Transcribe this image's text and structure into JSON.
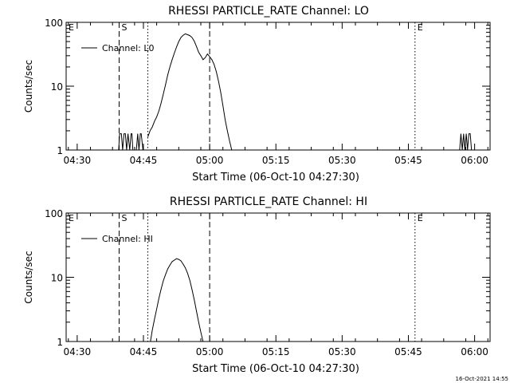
{
  "chart_data": [
    {
      "type": "line",
      "title": "RHESSI PARTICLE_RATE Channel: LO",
      "xlabel": "Start Time (06-Oct-10 04:27:30)",
      "ylabel": "Counts/sec",
      "yscale": "log",
      "ylim": [
        1,
        100
      ],
      "xlim_minutes": [
        -2.5,
        93.5
      ],
      "xticks": [
        {
          "t": 0,
          "label": "04:30"
        },
        {
          "t": 15,
          "label": "04:45"
        },
        {
          "t": 30,
          "label": "05:00"
        },
        {
          "t": 45,
          "label": "05:15"
        },
        {
          "t": 60,
          "label": "05:30"
        },
        {
          "t": 75,
          "label": "05:45"
        },
        {
          "t": 90,
          "label": "06:00"
        }
      ],
      "yticks": [
        {
          "v": 1,
          "label": "1"
        },
        {
          "v": 10,
          "label": "10"
        },
        {
          "v": 100,
          "label": "100"
        }
      ],
      "legend": {
        "label": "Channel: L0",
        "placement": "top-left"
      },
      "markers": [
        {
          "t": -2.5,
          "style": "dotted",
          "label": "E"
        },
        {
          "t": 9.5,
          "style": "dashed",
          "label": "S"
        },
        {
          "t": 16.0,
          "style": "dotted",
          "label": ""
        },
        {
          "t": 30.0,
          "style": "dashed",
          "label": ""
        },
        {
          "t": 76.5,
          "style": "dotted",
          "label": "E"
        },
        {
          "t": 93.5,
          "style": "dotted",
          "label": ""
        }
      ],
      "series": [
        {
          "name": "Channel: L0",
          "points": [
            [
              9.4,
              1
            ],
            [
              9.6,
              1.8
            ],
            [
              10.0,
              1.8
            ],
            [
              10.3,
              1
            ],
            [
              10.6,
              1.8
            ],
            [
              10.9,
              1.8
            ],
            [
              11.2,
              1
            ],
            [
              11.5,
              1.8
            ],
            [
              11.9,
              1
            ],
            [
              12.2,
              1.8
            ],
            [
              12.4,
              1.8
            ],
            [
              12.6,
              1
            ],
            [
              13.4,
              1
            ],
            [
              13.7,
              1.8
            ],
            [
              14.0,
              1
            ],
            [
              14.3,
              1.8
            ],
            [
              14.5,
              1.8
            ],
            [
              14.9,
              1
            ],
            [
              16.0,
              1.6
            ],
            [
              16.5,
              2.0
            ],
            [
              17.0,
              2.3
            ],
            [
              17.5,
              2.8
            ],
            [
              18.0,
              3.3
            ],
            [
              18.5,
              4.1
            ],
            [
              19.0,
              5.4
            ],
            [
              19.5,
              7.5
            ],
            [
              20.0,
              10.5
            ],
            [
              20.5,
              15
            ],
            [
              21.0,
              20
            ],
            [
              21.5,
              26
            ],
            [
              22.0,
              33
            ],
            [
              22.5,
              41
            ],
            [
              23.0,
              50
            ],
            [
              23.5,
              58
            ],
            [
              24.0,
              63
            ],
            [
              24.5,
              66
            ],
            [
              25.0,
              64
            ],
            [
              25.5,
              62
            ],
            [
              26.0,
              58
            ],
            [
              26.5,
              51
            ],
            [
              27.0,
              42
            ],
            [
              27.5,
              34
            ],
            [
              28.0,
              30
            ],
            [
              28.5,
              26
            ],
            [
              29.0,
              28
            ],
            [
              29.5,
              32
            ],
            [
              30.0,
              29
            ],
            [
              30.5,
              26
            ],
            [
              31.0,
              22
            ],
            [
              31.5,
              17
            ],
            [
              32.0,
              12
            ],
            [
              32.5,
              8
            ],
            [
              33.0,
              5
            ],
            [
              33.5,
              3
            ],
            [
              34.0,
              2
            ],
            [
              34.5,
              1.4
            ],
            [
              35.0,
              1
            ],
            [
              86.6,
              1
            ],
            [
              86.9,
              1.8
            ],
            [
              87.2,
              1
            ],
            [
              87.5,
              1.8
            ],
            [
              87.8,
              1
            ],
            [
              88.1,
              1.8
            ],
            [
              88.4,
              1
            ],
            [
              88.7,
              1.8
            ],
            [
              89.0,
              1.8
            ],
            [
              89.3,
              1
            ]
          ]
        }
      ]
    },
    {
      "type": "line",
      "title": "RHESSI PARTICLE_RATE Channel: HI",
      "xlabel": "Start Time (06-Oct-10 04:27:30)",
      "ylabel": "Counts/sec",
      "yscale": "log",
      "ylim": [
        1,
        100
      ],
      "xlim_minutes": [
        -2.5,
        93.5
      ],
      "xticks": [
        {
          "t": 0,
          "label": "04:30"
        },
        {
          "t": 15,
          "label": "04:45"
        },
        {
          "t": 30,
          "label": "05:00"
        },
        {
          "t": 45,
          "label": "05:15"
        },
        {
          "t": 60,
          "label": "05:30"
        },
        {
          "t": 75,
          "label": "05:45"
        },
        {
          "t": 90,
          "label": "06:00"
        }
      ],
      "yticks": [
        {
          "v": 1,
          "label": "1"
        },
        {
          "v": 10,
          "label": "10"
        },
        {
          "v": 100,
          "label": "100"
        }
      ],
      "legend": {
        "label": "Channel: HI",
        "placement": "top-left"
      },
      "markers": [
        {
          "t": -2.5,
          "style": "dotted",
          "label": "E"
        },
        {
          "t": 9.5,
          "style": "dashed",
          "label": "S"
        },
        {
          "t": 16.0,
          "style": "dotted",
          "label": ""
        },
        {
          "t": 30.0,
          "style": "dashed",
          "label": ""
        },
        {
          "t": 76.5,
          "style": "dotted",
          "label": "E"
        },
        {
          "t": 93.5,
          "style": "dotted",
          "label": ""
        }
      ],
      "series": [
        {
          "name": "Channel: HI",
          "points": [
            [
              16.6,
              1
            ],
            [
              17.0,
              1.5
            ],
            [
              17.5,
              2.2
            ],
            [
              18.0,
              3.2
            ],
            [
              18.5,
              4.7
            ],
            [
              19.0,
              6.5
            ],
            [
              19.5,
              8.8
            ],
            [
              20.0,
              11
            ],
            [
              20.5,
              13.5
            ],
            [
              21.0,
              15.5
            ],
            [
              21.5,
              17.5
            ],
            [
              22.0,
              18.5
            ],
            [
              22.5,
              19.5
            ],
            [
              23.0,
              19
            ],
            [
              23.5,
              18
            ],
            [
              24.0,
              16
            ],
            [
              24.5,
              14
            ],
            [
              25.0,
              11.5
            ],
            [
              25.5,
              9
            ],
            [
              26.0,
              6.5
            ],
            [
              26.5,
              4.5
            ],
            [
              27.0,
              3
            ],
            [
              27.5,
              2
            ],
            [
              28.0,
              1.4
            ],
            [
              28.5,
              1
            ]
          ]
        }
      ]
    }
  ],
  "footer": {
    "timestamp": "16-Oct-2021 14:55"
  }
}
